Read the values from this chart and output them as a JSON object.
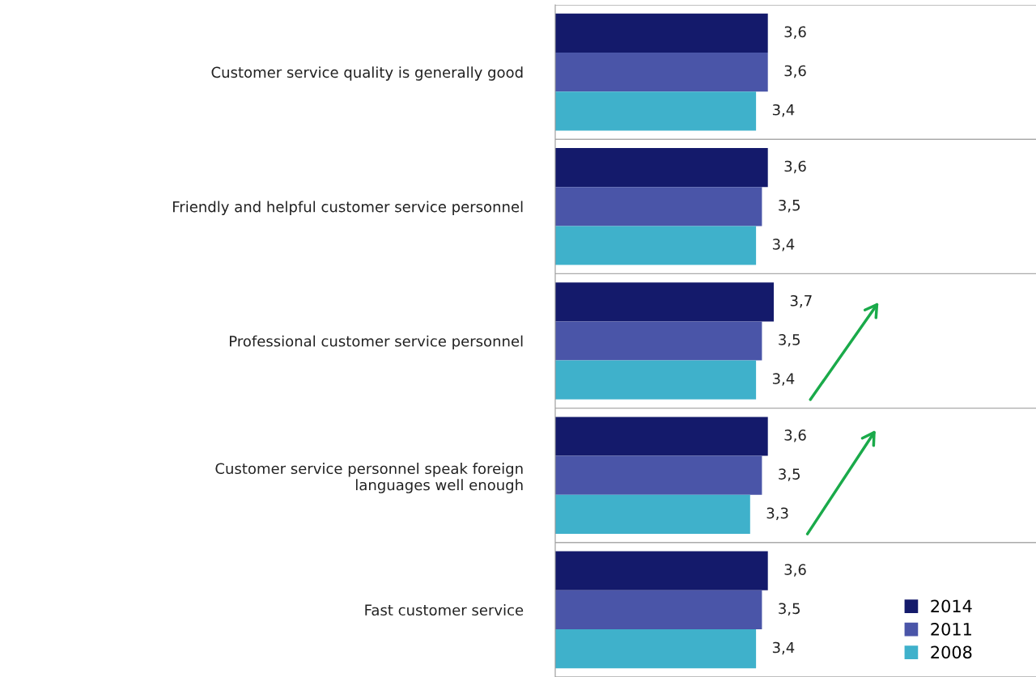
{
  "chart_data": {
    "type": "bar",
    "orientation": "horizontal",
    "categories": [
      "Customer service quality is generally good",
      "Friendly and helpful customer service personnel",
      "Professional customer service personnel",
      "Customer service personnel speak foreign\nlanguages well enough",
      "Fast customer service"
    ],
    "series": [
      {
        "name": "2014",
        "color": "#141a6b",
        "values": [
          3.6,
          3.6,
          3.7,
          3.6,
          3.6
        ],
        "value_labels": [
          "3,6",
          "3,6",
          "3,7",
          "3,6",
          "3,6"
        ]
      },
      {
        "name": "2011",
        "color": "#4a55a8",
        "values": [
          3.6,
          3.5,
          3.5,
          3.5,
          3.5
        ],
        "value_labels": [
          "3,6",
          "3,5",
          "3,5",
          "3,5",
          "3,5"
        ]
      },
      {
        "name": "2008",
        "color": "#3fb1cb",
        "values": [
          3.4,
          3.4,
          3.4,
          3.3,
          3.4
        ],
        "value_labels": [
          "3,4",
          "3,4",
          "3,4",
          "3,3",
          "3,4"
        ]
      }
    ],
    "grid": "y",
    "legend": "bottom right",
    "tick_labels": "y"
  }
}
